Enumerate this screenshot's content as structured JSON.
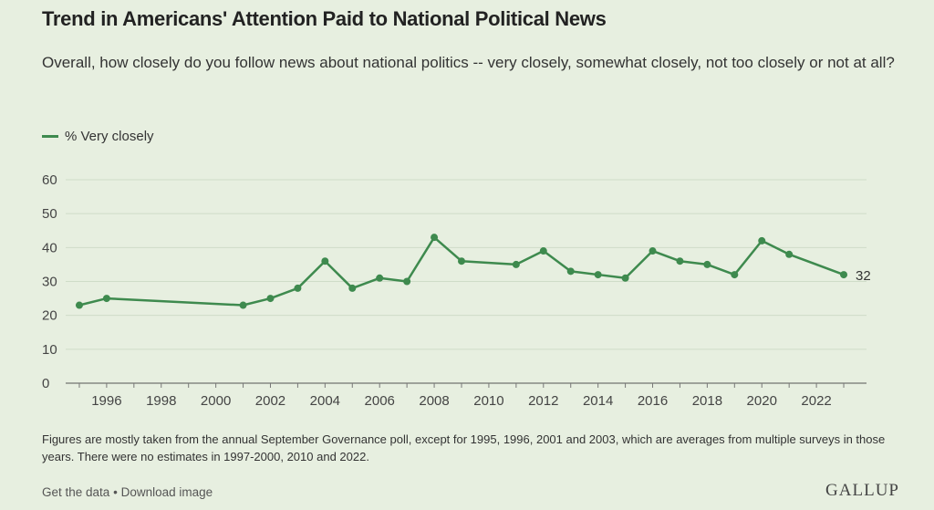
{
  "title": "Trend in Americans' Attention Paid to National Political News",
  "subtitle": "Overall, how closely do you follow news about national politics -- very closely, somewhat closely, not too closely or not at all?",
  "legend": {
    "label": "% Very closely"
  },
  "footnote": "Figures are mostly taken from the annual September Governance poll, except for 1995, 1996, 2001 and 2003, which are averages from multiple surveys in those years. There were no estimates in 1997-2000, 2010 and 2022.",
  "footer": {
    "get_data": "Get the data",
    "separator": "•",
    "download": "Download image"
  },
  "logo": "GALLUP",
  "colors": {
    "line": "#3e8a4e",
    "background": "#e7efe0",
    "grid": "#cfdcc8"
  },
  "chart_data": {
    "type": "line",
    "title": "Trend in Americans' Attention Paid to National Political News",
    "xlabel": "",
    "ylabel": "",
    "ylim": [
      0,
      60
    ],
    "xlim": [
      1995,
      2023
    ],
    "yticks": [
      0,
      10,
      20,
      30,
      40,
      50,
      60
    ],
    "xticks": [
      1996,
      1998,
      2000,
      2002,
      2004,
      2006,
      2008,
      2010,
      2012,
      2014,
      2016,
      2018,
      2020,
      2022
    ],
    "grid": true,
    "legend_position": "top-left",
    "end_label": "32",
    "series": [
      {
        "name": "% Very closely",
        "x": [
          1995,
          1996,
          2001,
          2002,
          2003,
          2004,
          2005,
          2006,
          2007,
          2008,
          2009,
          2011,
          2012,
          2013,
          2014,
          2015,
          2016,
          2017,
          2018,
          2019,
          2020,
          2021,
          2023
        ],
        "y": [
          23,
          25,
          23,
          25,
          28,
          36,
          28,
          31,
          30,
          43,
          36,
          35,
          39,
          33,
          32,
          31,
          39,
          36,
          35,
          32,
          42,
          38,
          32
        ]
      }
    ]
  }
}
